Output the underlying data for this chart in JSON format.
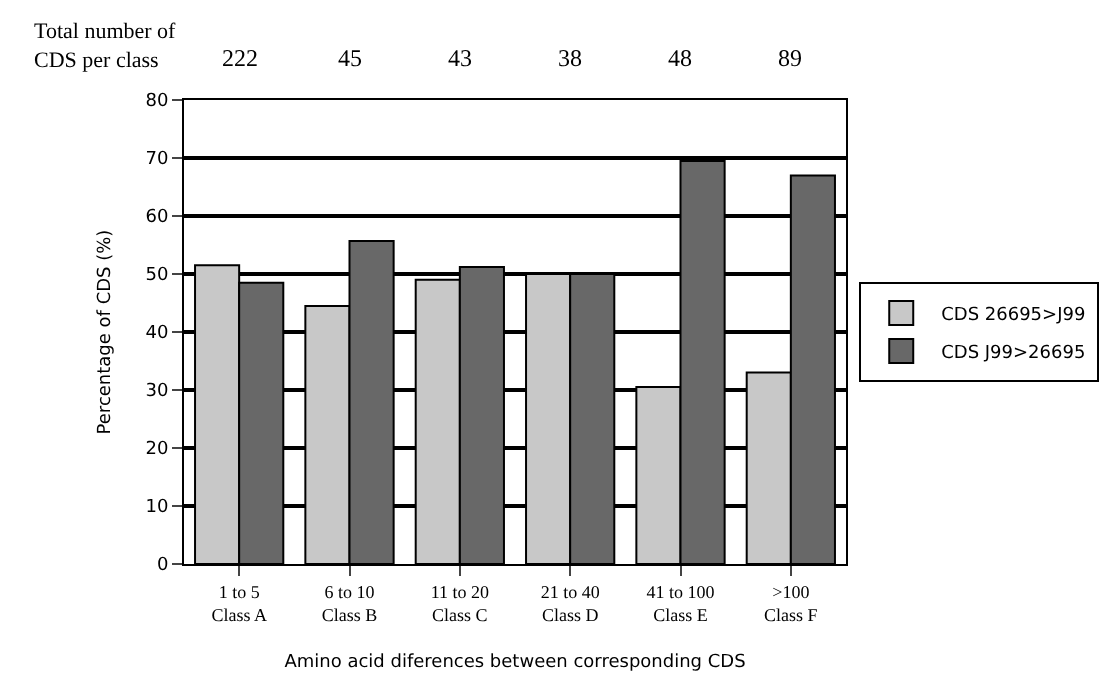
{
  "chart_data": {
    "type": "bar",
    "categories": [
      "1 to 5\nClass A",
      "6 to 10\nClass B",
      "11 to 20\nClass C",
      "21 to 40\nClass D",
      "41 to 100\nClass E",
      ">100\nClass F"
    ],
    "series": [
      {
        "name": "CDS 26695>J99",
        "color": "#c8c8c8",
        "values": [
          51.5,
          44.5,
          49,
          50,
          30.5,
          33
        ]
      },
      {
        "name": "CDS J99>26695",
        "color": "#686868",
        "values": [
          48.5,
          55.7,
          51.2,
          50,
          69.5,
          67
        ]
      }
    ],
    "xlabel": "Amino acid diferences between corresponding CDS",
    "ylabel": "Percentage of CDS (%)",
    "ylim": [
      0,
      80
    ],
    "yticks": [
      0,
      10,
      20,
      30,
      40,
      50,
      60,
      70,
      80
    ],
    "annotations": [
      "Total number of\nCDS per class",
      "222",
      "45",
      "43",
      "38",
      "48",
      "89"
    ],
    "grid": "y",
    "legend": "right"
  }
}
